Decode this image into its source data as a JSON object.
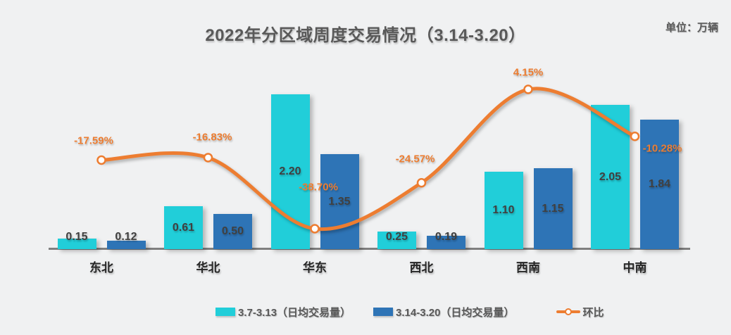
{
  "header": {
    "title": "2022年分区域周度交易情况（3.14-3.20）",
    "unit_label": "单位：万辆"
  },
  "chart_data": {
    "type": "bar",
    "subtype": "grouped-bars-with-line-overlay",
    "title": "2022年分区域周度交易情况（3.14-3.20）",
    "unit": "万辆",
    "categories": [
      "东北",
      "华北",
      "华东",
      "西北",
      "西南",
      "中南"
    ],
    "series": [
      {
        "name": "3.7-3.13（日均交易量）",
        "type": "bar",
        "color": "#21ced9",
        "values": [
          0.15,
          0.61,
          2.2,
          0.25,
          1.1,
          2.05
        ]
      },
      {
        "name": "3.14-3.20（日均交易量）",
        "type": "bar",
        "color": "#2e74b6",
        "values": [
          0.12,
          0.5,
          1.35,
          0.19,
          1.15,
          1.84
        ]
      },
      {
        "name": "环比",
        "type": "line",
        "color": "#ed7d31",
        "values": [
          -17.59,
          -16.83,
          -38.7,
          -24.57,
          4.15,
          -10.28
        ],
        "value_suffix": "%"
      }
    ],
    "xlabel": "",
    "ylabel": "",
    "value_label_decimals": 2,
    "grid": false,
    "legend_position": "bottom",
    "background_color": "#f0f1f2",
    "axis_line_color": "#7f7f7f",
    "value_label_color": "#404040",
    "category_label_color": "#262626",
    "title_color": "#595959"
  }
}
